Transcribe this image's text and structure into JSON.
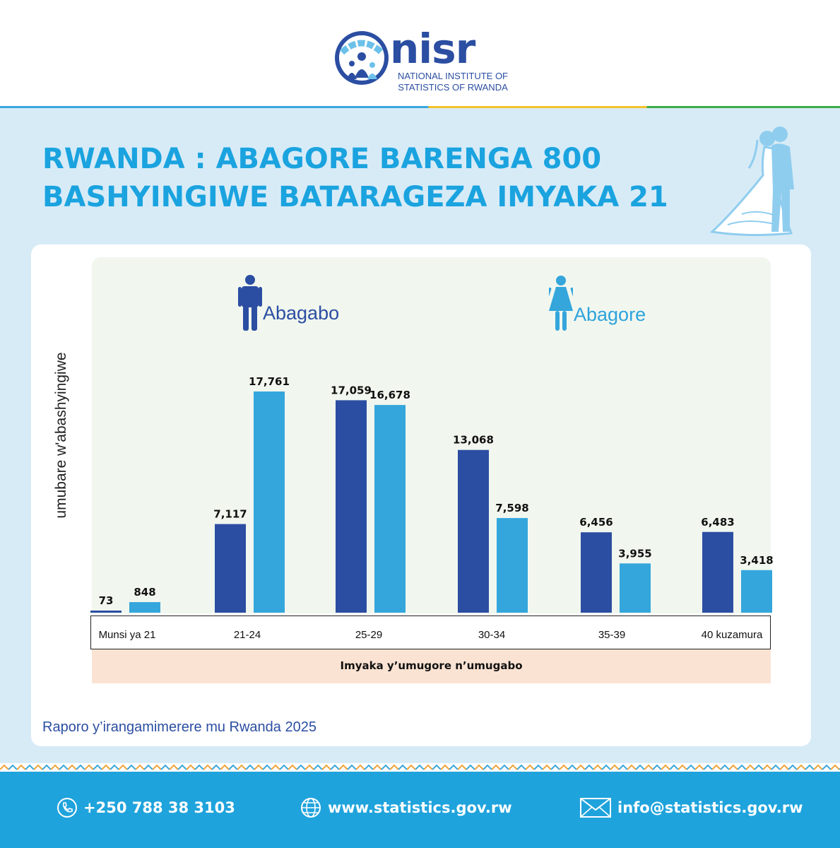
{
  "brand": {
    "logo_word": "nisr",
    "logo_line1": "NATIONAL INSTITUTE OF",
    "logo_line2": "STATISTICS OF RWANDA",
    "colors": {
      "dark_blue": "#2b4ea2",
      "light_blue": "#1fa3dc",
      "gold": "#f4c22b",
      "green": "#3daa4a"
    }
  },
  "title_line1": "RWANDA : ABAGORE BARENGA 800",
  "title_line2": "BASHYINGIWE BATARAGEZA IMYAKA 21",
  "chart_data": {
    "type": "bar",
    "ylabel": "umubare w'abashyingiwe",
    "xlabel": "Imyaka y’umugore n’umugabo",
    "categories": [
      "Munsi ya 21",
      "21-24",
      "25-29",
      "30-34",
      "35-39",
      "40 kuzamura"
    ],
    "series": [
      {
        "name": "Abagabo",
        "color": "#2b4ea2",
        "values": [
          73,
          7117,
          17059,
          13068,
          6456,
          6483
        ]
      },
      {
        "name": "Abagore",
        "color": "#34a6dc",
        "values": [
          848,
          17761,
          16678,
          7598,
          3955,
          3418
        ]
      }
    ],
    "value_labels": [
      [
        "73",
        "7,117",
        "17,059",
        "13,068",
        "6,456",
        "6,483"
      ],
      [
        "848",
        "17,761",
        "16,678",
        "7,598",
        "3,955",
        "3,418"
      ]
    ],
    "ylim": [
      0,
      20000
    ],
    "grid": false,
    "legend": "top"
  },
  "source": "Raporo y’irangamimerere mu Rwanda 2025",
  "footer": {
    "phone": "+250 788 38 3103",
    "website": "www.statistics.gov.rw",
    "email": "info@statistics.gov.rw"
  }
}
